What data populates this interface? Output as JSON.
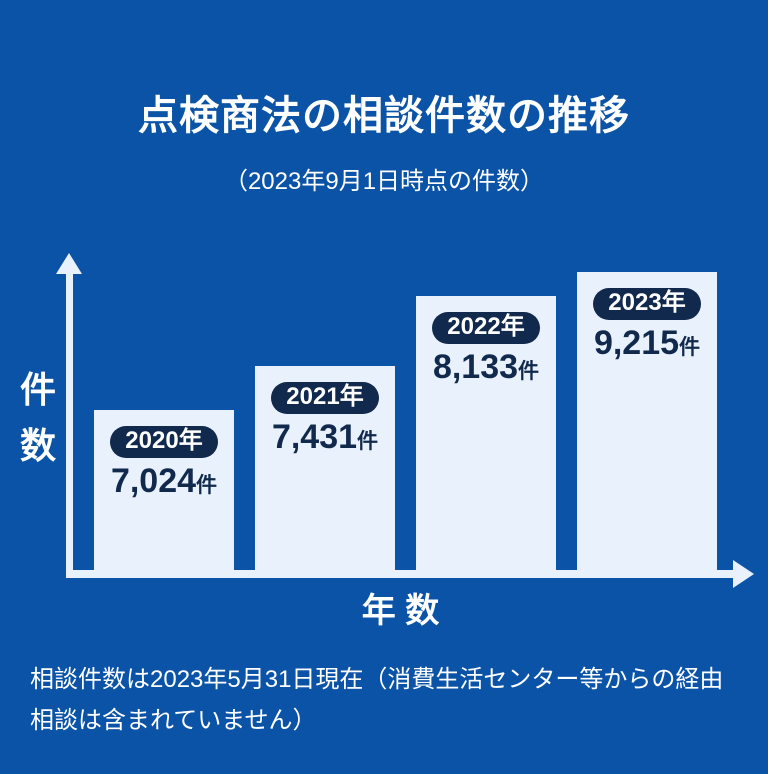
{
  "page": {
    "title": "点検商法の相談件数の推移",
    "subtitle": "（2023年9月1日時点の件数）",
    "footnote_line1": "相談件数は2023年5月31日現在（消費生活センター等からの経由",
    "footnote_line2": "相談は含まれていません）"
  },
  "chart": {
    "y_axis_label": "件数",
    "x_axis_label": "年 数",
    "bars": [
      {
        "year_label": "2020年",
        "value_label": "7,024",
        "unit": "件"
      },
      {
        "year_label": "2021年",
        "value_label": "7,431",
        "unit": "件"
      },
      {
        "year_label": "2022年",
        "value_label": "8,133",
        "unit": "件"
      },
      {
        "year_label": "2023年",
        "value_label": "9,215",
        "unit": "件"
      }
    ]
  },
  "colors": {
    "background": "#0b53a6",
    "bar_fill": "#e9f1fc",
    "badge": "#10294d",
    "text_light": "#ffffff",
    "text_dark": "#10294d"
  },
  "chart_data": {
    "type": "bar",
    "categories": [
      "2020年",
      "2021年",
      "2022年",
      "2023年"
    ],
    "values": [
      7024,
      7431,
      8133,
      9215
    ],
    "value_labels": [
      "7,024件",
      "7,431件",
      "8,133件",
      "9,215件"
    ],
    "title": "点検商法の相談件数の推移",
    "subtitle": "（2023年9月1日時点の件数）",
    "xlabel": "年数",
    "ylabel": "件数",
    "unit": "件",
    "grid": false,
    "legend": false,
    "axis_arrows": true,
    "value_labels_on_bars": true,
    "annotation": "相談件数は2023年5月31日現在（消費生活センター等からの経由相談は含まれていません）"
  }
}
